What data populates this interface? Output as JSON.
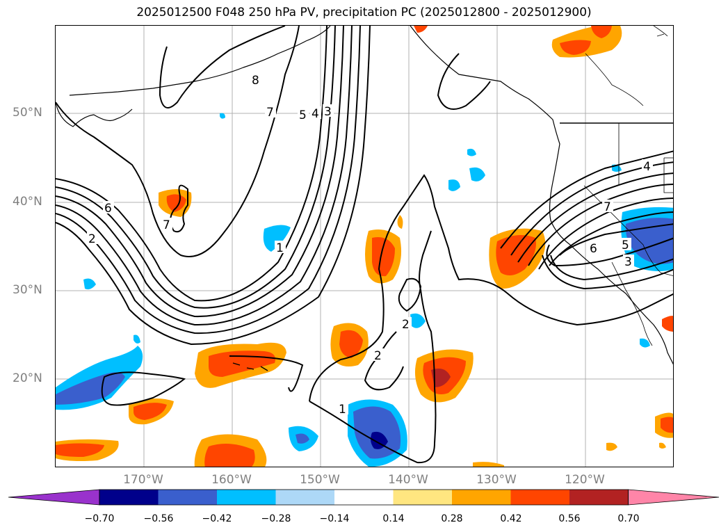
{
  "title": "2025012500 F048 250 hPa PV, precipitation PC (2025012800 - 2025012900)",
  "map": {
    "lon_range": [
      -180,
      -110
    ],
    "lat_range": [
      10,
      60
    ],
    "grid": true,
    "gridline_color": "#b0b0b0",
    "land_outline_color": "#000000"
  },
  "lat_labels": [
    {
      "lat": 50,
      "text": "50°N"
    },
    {
      "lat": 40,
      "text": "40°N"
    },
    {
      "lat": 30,
      "text": "30°N"
    },
    {
      "lat": 20,
      "text": "20°N"
    }
  ],
  "lon_labels": [
    {
      "lon": -170,
      "text": "170°W"
    },
    {
      "lon": -160,
      "text": "160°W"
    },
    {
      "lon": -150,
      "text": "150°W"
    },
    {
      "lon": -140,
      "text": "140°W"
    },
    {
      "lon": -130,
      "text": "130°W"
    },
    {
      "lon": -120,
      "text": "120°W"
    }
  ],
  "pv_contour_labels": [
    "8",
    "7",
    "5",
    "4",
    "3",
    "6",
    "2",
    "7",
    "1",
    "2",
    "1",
    "2",
    "4",
    "7",
    "6",
    "5",
    "3"
  ],
  "colorbar": {
    "ticks": [
      "−0.70",
      "−0.56",
      "−0.42",
      "−0.28",
      "−0.14",
      "0.14",
      "0.28",
      "0.42",
      "0.56",
      "0.70"
    ],
    "colors": [
      "#9932cc",
      "#00008b",
      "#3a5fcd",
      "#00bfff",
      "#add8f7",
      "#ffffff",
      "#ffe680",
      "#ffa500",
      "#ff4500",
      "#b22222",
      "#ff85a8"
    ],
    "extend": "both"
  }
}
